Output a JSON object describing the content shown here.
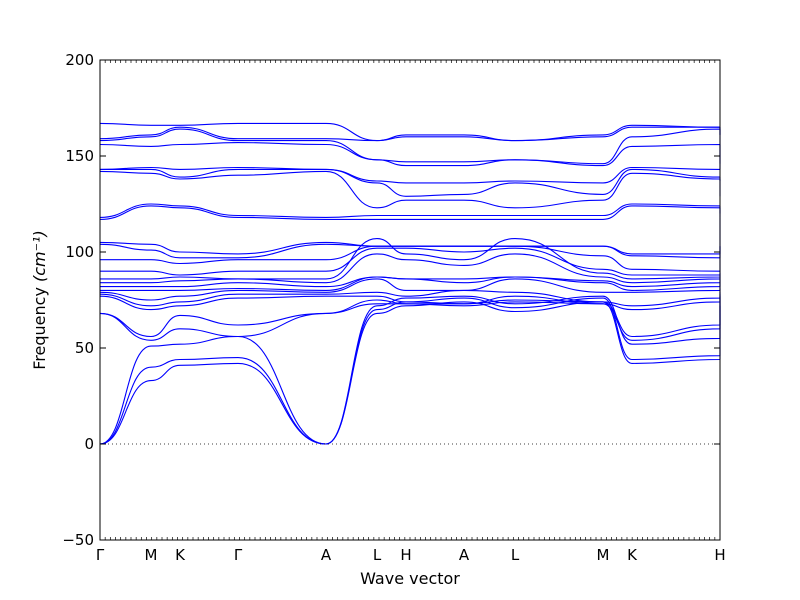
{
  "chart_data": {
    "type": "line",
    "title": "",
    "xlabel": "Wave vector",
    "ylabel": "Frequency",
    "ylabel_unit": "(cm⁻¹)",
    "ylim": [
      -50,
      200
    ],
    "yticks": [
      -50,
      0,
      50,
      100,
      150,
      200
    ],
    "grid": false,
    "zero_line": "dotted",
    "line_color": "#0000ff",
    "x_ticks": [
      {
        "label": "Γ",
        "pos": 0.0
      },
      {
        "label": "M",
        "pos": 0.51
      },
      {
        "label": "K",
        "pos": 0.8
      },
      {
        "label": "Γ",
        "pos": 1.38
      },
      {
        "label": "A",
        "pos": 2.26
      },
      {
        "label": "L",
        "pos": 2.77
      },
      {
        "label": "H",
        "pos": 3.06
      },
      {
        "label": "A",
        "pos": 3.64
      },
      {
        "label": "L",
        "pos": 4.15
      },
      {
        "label": "M",
        "pos": 5.03
      },
      {
        "label": "K",
        "pos": 5.32
      },
      {
        "label": "H",
        "pos": 6.2
      }
    ],
    "xlim": [
      0,
      6.2
    ],
    "series": [
      {
        "values": [
          0,
          33,
          41,
          42,
          0,
          68,
          72,
          74,
          69,
          74,
          42,
          44,
          72
        ]
      },
      {
        "values": [
          0,
          40,
          44,
          45,
          0,
          70,
          74,
          76,
          71,
          76,
          44,
          46,
          74
        ]
      },
      {
        "values": [
          0,
          51,
          52,
          56,
          0,
          72,
          76,
          77,
          73,
          77,
          52,
          55,
          76
        ]
      },
      {
        "values": [
          68,
          54,
          60,
          56,
          68,
          73,
          73,
          72,
          74,
          73,
          54,
          60,
          77
        ]
      },
      {
        "values": [
          68,
          56,
          67,
          62,
          68,
          75,
          73,
          73,
          75,
          74,
          56,
          62,
          78
        ]
      },
      {
        "values": [
          77,
          70,
          72,
          76,
          77,
          77,
          74,
          73,
          77,
          73,
          70,
          74,
          79
        ]
      },
      {
        "values": [
          78,
          72,
          74,
          78,
          78,
          79,
          77,
          80,
          79,
          74,
          72,
          76,
          81
        ]
      },
      {
        "values": [
          79,
          75,
          77,
          80,
          79,
          86,
          80,
          80,
          86,
          79,
          79,
          80,
          84
        ]
      },
      {
        "values": [
          80,
          80,
          80,
          81,
          80,
          87,
          86,
          84,
          87,
          84,
          80,
          82,
          86
        ]
      },
      {
        "values": [
          82,
          82,
          82,
          84,
          82,
          87,
          86,
          86,
          87,
          85,
          82,
          84,
          87
        ]
      },
      {
        "values": [
          84,
          84,
          85,
          86,
          84,
          99,
          96,
          93,
          99,
          87,
          84,
          86,
          88
        ]
      },
      {
        "values": [
          86,
          86,
          87,
          86,
          86,
          107,
          99,
          96,
          107,
          89,
          86,
          87,
          89
        ]
      },
      {
        "values": [
          90,
          90,
          88,
          90,
          90,
          102,
          102,
          100,
          102,
          91,
          88,
          88,
          90
        ]
      },
      {
        "values": [
          96,
          96,
          94,
          96,
          96,
          103,
          103,
          103,
          103,
          98,
          91,
          90,
          103
        ]
      },
      {
        "values": [
          104,
          101,
          97,
          97,
          104,
          103,
          103,
          103,
          103,
          103,
          98,
          97,
          103
        ]
      },
      {
        "values": [
          105,
          104,
          100,
          99,
          105,
          103,
          103,
          103,
          103,
          103,
          99,
          99,
          118
        ]
      },
      {
        "values": [
          117,
          124,
          123,
          118,
          117,
          117,
          117,
          117,
          117,
          117,
          124,
          123,
          118
        ]
      },
      {
        "values": [
          118,
          125,
          124,
          119,
          118,
          119,
          119,
          119,
          119,
          119,
          125,
          124,
          120
        ]
      },
      {
        "values": [
          142,
          141,
          138,
          140,
          142,
          123,
          127,
          127,
          123,
          127,
          141,
          138,
          129
        ]
      },
      {
        "values": [
          143,
          143,
          139,
          143,
          143,
          136,
          129,
          130,
          136,
          130,
          143,
          139,
          137
        ]
      },
      {
        "values": [
          143,
          144,
          143,
          144,
          143,
          137,
          136,
          136,
          137,
          136,
          144,
          143,
          146
        ]
      },
      {
        "values": [
          156,
          155,
          156,
          157,
          156,
          148,
          145,
          145,
          148,
          145,
          155,
          156,
          146
        ]
      },
      {
        "values": [
          158,
          160,
          164,
          158,
          158,
          148,
          147,
          147,
          148,
          146,
          160,
          164,
          146
        ]
      },
      {
        "values": [
          159,
          161,
          165,
          159,
          159,
          158,
          160,
          160,
          158,
          160,
          165,
          165,
          161
        ]
      },
      {
        "values": [
          167,
          166,
          166,
          167,
          167,
          158,
          161,
          161,
          158,
          161,
          166,
          165,
          161
        ]
      }
    ]
  }
}
